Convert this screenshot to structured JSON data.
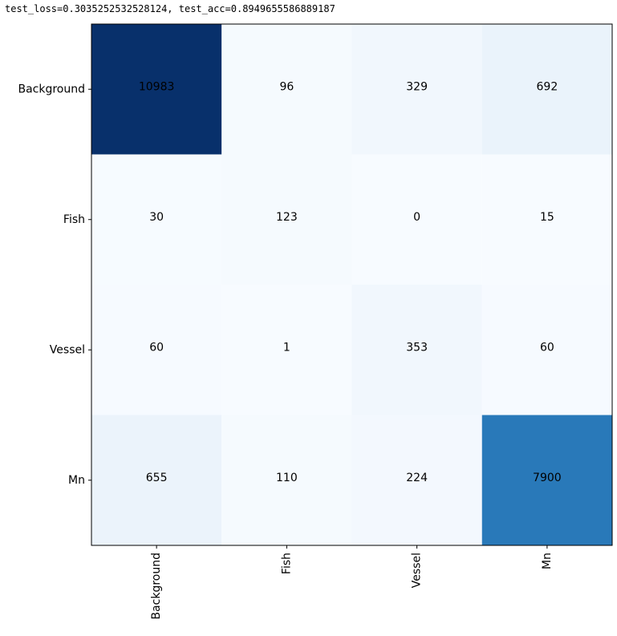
{
  "output_text": "test_loss=0.3035252532528124, test_acc=0.8949655586889187",
  "chart_data": {
    "type": "heatmap",
    "title": "",
    "xlabel": "",
    "ylabel": "",
    "colormap": "Blues",
    "row_labels": [
      "Background",
      "Fish",
      "Vessel",
      "Mn"
    ],
    "col_labels": [
      "Background",
      "Fish",
      "Vessel",
      "Mn"
    ],
    "matrix": [
      [
        10983,
        96,
        329,
        692
      ],
      [
        30,
        123,
        0,
        15
      ],
      [
        60,
        1,
        353,
        60
      ],
      [
        655,
        110,
        224,
        7900
      ]
    ],
    "colors": {
      "min": "#f7fbff",
      "max": "#08306b",
      "text": "#000000",
      "axis": "#000000"
    }
  }
}
